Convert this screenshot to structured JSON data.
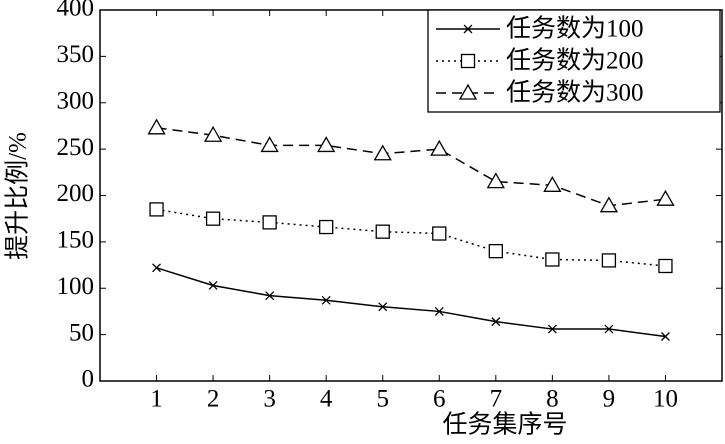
{
  "chart_data": {
    "type": "line",
    "xlabel": "任务集序号",
    "ylabel": "提升比例/%",
    "x": [
      1,
      2,
      3,
      4,
      5,
      6,
      7,
      8,
      9,
      10
    ],
    "xlim": [
      0,
      11
    ],
    "xticks": [
      1,
      2,
      3,
      4,
      5,
      6,
      7,
      8,
      9,
      10
    ],
    "ylim": [
      0,
      400
    ],
    "yticks": [
      0,
      50,
      100,
      150,
      200,
      250,
      300,
      350,
      400
    ],
    "legend": "upper right",
    "series": [
      {
        "name": "任务数为100",
        "color": "#000000",
        "linestyle": "solid",
        "marker": "x",
        "values": [
          122,
          103,
          92,
          87,
          80,
          75,
          64,
          56,
          56,
          48
        ]
      },
      {
        "name": "任务数为200",
        "color": "#000000",
        "linestyle": "dotted",
        "marker": "square",
        "values": [
          185,
          175,
          171,
          166,
          161,
          159,
          140,
          131,
          130,
          124
        ]
      },
      {
        "name": "任务数为300",
        "color": "#000000",
        "linestyle": "dashed",
        "marker": "triangle",
        "values": [
          273,
          265,
          254,
          254,
          245,
          250,
          215,
          211,
          189,
          196
        ]
      }
    ]
  }
}
